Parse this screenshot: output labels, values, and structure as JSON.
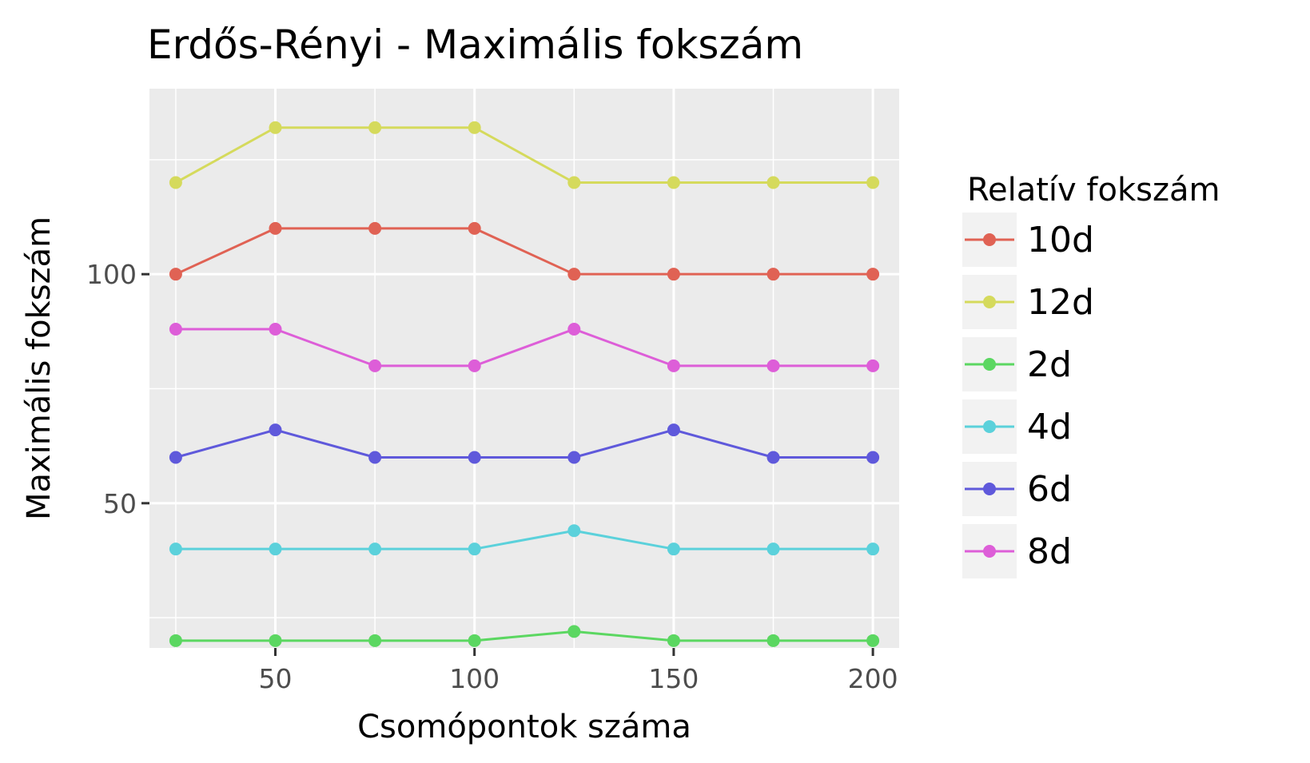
{
  "chart_data": {
    "type": "line",
    "title": "Erdős-Rényi - Maximális fokszám",
    "xlabel": "Csomópontok száma",
    "ylabel": "Maximális fokszám",
    "x": [
      25,
      50,
      75,
      100,
      125,
      150,
      175,
      200
    ],
    "xlim": [
      18.4,
      206.6
    ],
    "ylim": [
      18.4,
      140.5
    ],
    "x_ticks": [
      50,
      100,
      150,
      200
    ],
    "x_tick_labels": [
      "50",
      "100",
      "150",
      "200"
    ],
    "y_ticks": [
      50,
      100
    ],
    "y_tick_labels": [
      "50",
      "100"
    ],
    "y_minor_gridlines": [
      25,
      75,
      125
    ],
    "x_minor_gridlines": [
      25,
      75,
      125,
      175
    ],
    "grid": true,
    "legend": {
      "title": "Relatív fokszám",
      "position": "right"
    },
    "series": [
      {
        "name": "10d",
        "color": "#e06254",
        "values": [
          100,
          110,
          110,
          110,
          100,
          100,
          100,
          100
        ]
      },
      {
        "name": "12d",
        "color": "#d5da5c",
        "values": [
          120,
          132,
          132,
          132,
          120,
          120,
          120,
          120
        ]
      },
      {
        "name": "2d",
        "color": "#5bd761",
        "values": [
          20,
          20,
          20,
          20,
          22,
          20,
          20,
          20
        ]
      },
      {
        "name": "4d",
        "color": "#5bd1db",
        "values": [
          40,
          40,
          40,
          40,
          44,
          40,
          40,
          40
        ]
      },
      {
        "name": "6d",
        "color": "#5f59db",
        "values": [
          60,
          66,
          60,
          60,
          60,
          66,
          60,
          60
        ]
      },
      {
        "name": "8d",
        "color": "#dd5ed8",
        "values": [
          88,
          88,
          80,
          80,
          88,
          80,
          80,
          80
        ]
      }
    ]
  }
}
